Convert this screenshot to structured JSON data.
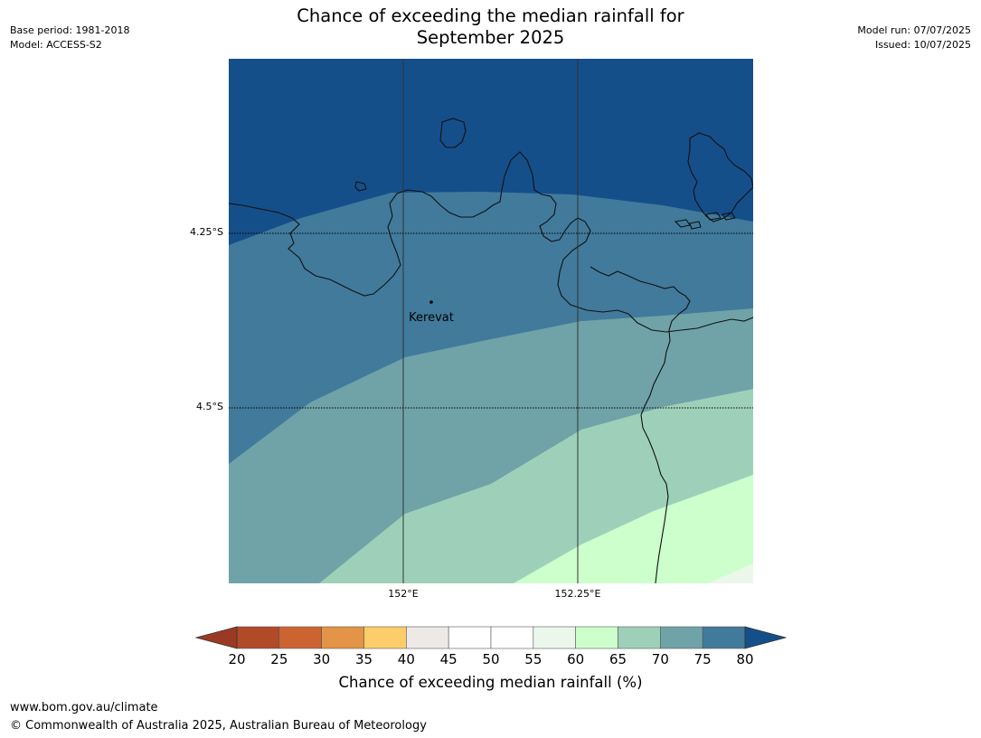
{
  "title_line1": "Chance of exceeding the median rainfall for",
  "title_line2": "September 2025",
  "meta_left": {
    "base_period": "Base period: 1981-2018",
    "model": "Model: ACCESS-S2"
  },
  "meta_right": {
    "model_run": "Model run: 07/07/2025",
    "issued": "Issued: 10/07/2025"
  },
  "map": {
    "place_label": "Kerevat",
    "lat_labels": [
      "4.25°S",
      "4.5°S"
    ],
    "lon_labels": [
      "152°E",
      "152.25°E"
    ],
    "extent": {
      "lon": [
        151.75,
        152.5
      ],
      "lat": [
        -4.0,
        -4.75
      ]
    }
  },
  "colorbar": {
    "title": "Chance of exceeding median rainfall (%)",
    "ticks": [
      "20",
      "25",
      "30",
      "35",
      "40",
      "45",
      "50",
      "55",
      "60",
      "65",
      "70",
      "75",
      "80"
    ],
    "low_extend_color": "#9b3a24",
    "high_extend_color": "#154f8a",
    "colors": [
      "#b04a28",
      "#cc6432",
      "#e39447",
      "#fdcd6b",
      "#ede9e6",
      "#ffffff",
      "#ffffff",
      "#eaf7ea",
      "#ccffcc",
      "#9ed0b9",
      "#6fa3a7",
      "#417a9b"
    ]
  },
  "footer": {
    "url": "www.bom.gov.au/climate",
    "copyright": "© Commonwealth of Australia 2025, Australian Bureau of Meteorology"
  }
}
